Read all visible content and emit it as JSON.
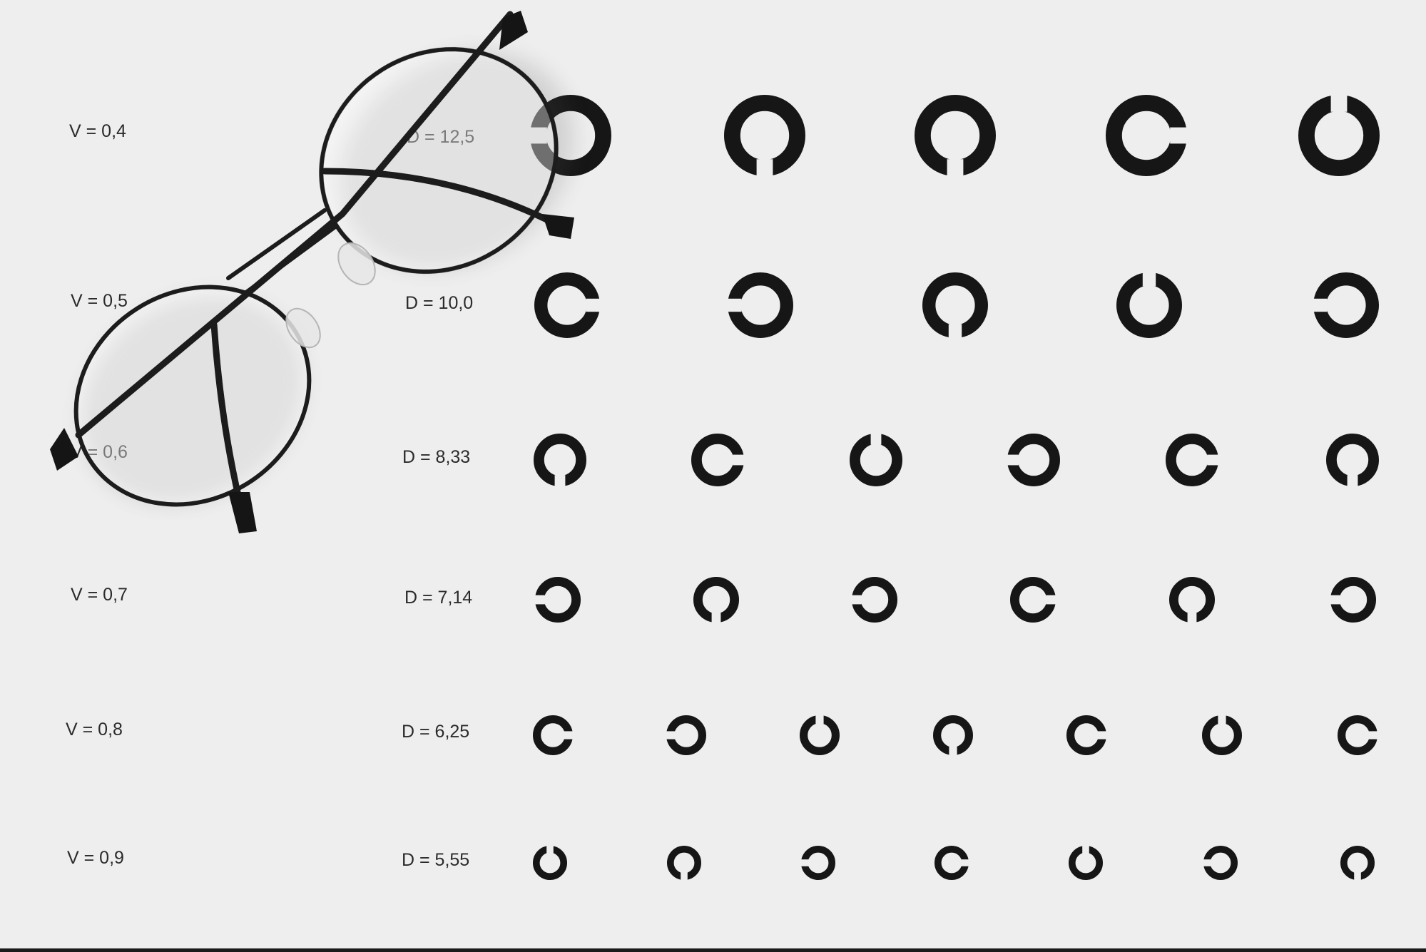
{
  "chart_title": "",
  "rows": [
    {
      "v": "V = 0,4",
      "d": "D = 12,5",
      "gaps": [
        "left",
        "bottom",
        "bottom",
        "right",
        "top"
      ]
    },
    {
      "v": "V = 0,5",
      "d": "D = 10,0",
      "gaps": [
        "right",
        "left",
        "bottom",
        "top",
        "left"
      ]
    },
    {
      "v": "V = 0,6",
      "d": "D = 8,33",
      "gaps": [
        "bottom",
        "right",
        "top",
        "left",
        "right",
        "bottom"
      ]
    },
    {
      "v": "V = 0,7",
      "d": "D = 7,14",
      "gaps": [
        "left",
        "bottom",
        "left",
        "right",
        "bottom",
        "left"
      ]
    },
    {
      "v": "V = 0,8",
      "d": "D = 6,25",
      "gaps": [
        "right",
        "left",
        "top",
        "bottom",
        "right",
        "top",
        "right"
      ]
    },
    {
      "v": "V = 0,9",
      "d": "D = 5,55",
      "gaps": [
        "top",
        "bottom",
        "left",
        "right",
        "top",
        "left",
        "bottom"
      ]
    }
  ],
  "colors": {
    "background": "#eeeeee",
    "optotype": "#161616",
    "label_text": "#2b2b2b",
    "frame": "#1c1c1c"
  }
}
